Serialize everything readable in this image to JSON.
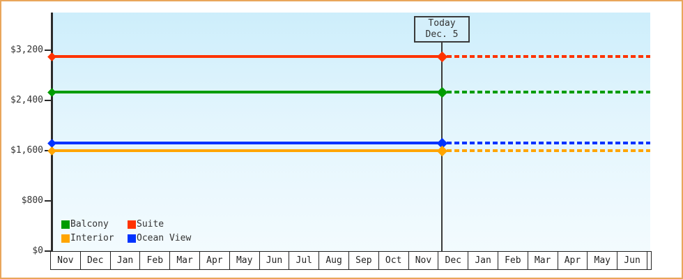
{
  "frame": {
    "border_color": "#e9a65b"
  },
  "chart_data": {
    "type": "line",
    "title": "",
    "xlabel": "",
    "ylabel": "",
    "y_ticks": [
      "$0",
      "$800",
      "$1,600",
      "$2,400",
      "$3,200"
    ],
    "y_tick_values": [
      0,
      800,
      1600,
      2400,
      3200
    ],
    "ylim": [
      0,
      3800
    ],
    "categories": [
      "Nov",
      "Dec",
      "Jan",
      "Feb",
      "Mar",
      "Apr",
      "May",
      "Jun",
      "Jul",
      "Aug",
      "Sep",
      "Oct",
      "Nov",
      "Dec",
      "Jan",
      "Feb",
      "Mar",
      "Apr",
      "May",
      "Jun"
    ],
    "series": [
      {
        "name": "Suite",
        "value": 3100,
        "color": "#ff3300",
        "style": "solid-then-dashed"
      },
      {
        "name": "Balcony",
        "value": 2530,
        "color": "#009c00",
        "style": "solid-then-dashed"
      },
      {
        "name": "Ocean View",
        "value": 1720,
        "color": "#0033ff",
        "style": "solid-then-dashed"
      },
      {
        "name": "Interior",
        "value": 1600,
        "color": "#ffa500",
        "style": "solid-then-dashed"
      }
    ],
    "today_marker": {
      "label_line1": "Today",
      "label_line2": "Dec. 5",
      "month_index": 13,
      "month_fraction": 0.13
    },
    "legend": {
      "position": "bottom-left-inside",
      "items": [
        {
          "label": "Balcony",
          "color": "#009c00"
        },
        {
          "label": "Suite",
          "color": "#ff3300"
        },
        {
          "label": "Interior",
          "color": "#ffa500"
        },
        {
          "label": "Ocean View",
          "color": "#0033ff"
        }
      ]
    }
  }
}
